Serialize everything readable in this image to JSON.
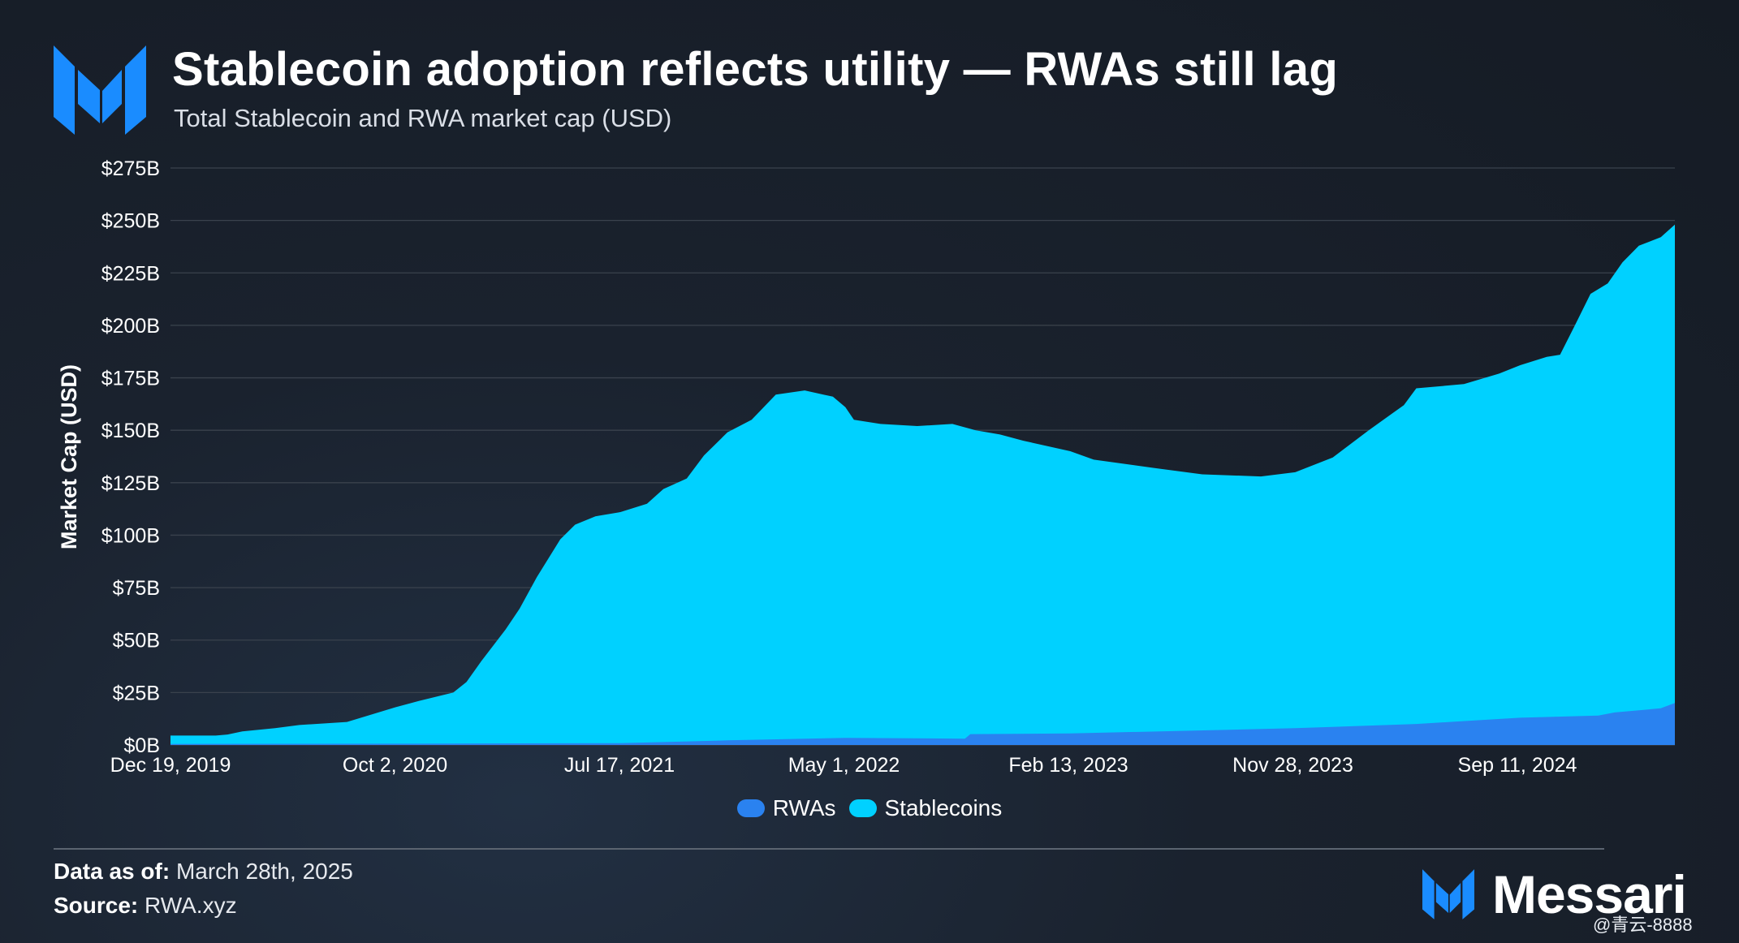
{
  "title": "Stablecoin adoption reflects utility — RWAs still lag",
  "subtitle": "Total Stablecoin and RWA market cap (USD)",
  "footer": {
    "date_label": "Data as of:",
    "date_value": "March 28th, 2025",
    "source_label": "Source:",
    "source_value": "RWA.xyz"
  },
  "brand": {
    "name": "Messari",
    "icon": "messari-logo-icon"
  },
  "watermark": "@青云-8888",
  "colors": {
    "stablecoins": "#00d1ff",
    "rwas": "#2a82f0",
    "grid": "#3a424d",
    "background": "#181f29"
  },
  "chart_data": {
    "type": "area",
    "stacked": false,
    "ylabel": "Market Cap (USD)",
    "xlabel": "",
    "ylim": [
      0,
      275
    ],
    "y_unit": "billions USD",
    "y_ticks": [
      "$0B",
      "$25B",
      "$50B",
      "$75B",
      "$100B",
      "$125B",
      "$150B",
      "$175B",
      "$200B",
      "$225B",
      "$250B",
      "$275B"
    ],
    "x_ticks": [
      "Dec 19, 2019",
      "Oct 2, 2020",
      "Jul 17, 2021",
      "May 1, 2022",
      "Feb 13, 2023",
      "Nov 28, 2023",
      "Sep 11, 2024"
    ],
    "x_range": [
      "2019-12-19",
      "2025-03-28"
    ],
    "grid": true,
    "legend_position": "bottom-center",
    "series": [
      {
        "name": "RWAs",
        "color": "#2a82f0",
        "points": [
          [
            "2019-12-19",
            0.5
          ],
          [
            "2020-10-02",
            0.6
          ],
          [
            "2021-07-17",
            0.9
          ],
          [
            "2021-12-01",
            2.2
          ],
          [
            "2022-05-01",
            3.4
          ],
          [
            "2022-10-01",
            3.0
          ],
          [
            "2022-10-08",
            5.2
          ],
          [
            "2023-02-13",
            5.5
          ],
          [
            "2023-11-28",
            8.0
          ],
          [
            "2024-05-01",
            10.0
          ],
          [
            "2024-09-11",
            13.0
          ],
          [
            "2024-12-20",
            14.0
          ],
          [
            "2025-01-10",
            15.5
          ],
          [
            "2025-03-10",
            17.5
          ],
          [
            "2025-03-28",
            20.0
          ]
        ]
      },
      {
        "name": "Stablecoins",
        "color": "#00d1ff",
        "points": [
          [
            "2019-12-19",
            4.5
          ],
          [
            "2020-02-15",
            4.5
          ],
          [
            "2020-03-01",
            5.0
          ],
          [
            "2020-03-20",
            6.5
          ],
          [
            "2020-05-01",
            8.0
          ],
          [
            "2020-06-01",
            9.5
          ],
          [
            "2020-08-01",
            11.0
          ],
          [
            "2020-10-02",
            18.0
          ],
          [
            "2020-11-01",
            21.0
          ],
          [
            "2020-12-15",
            25.0
          ],
          [
            "2021-01-01",
            30.0
          ],
          [
            "2021-01-20",
            40.0
          ],
          [
            "2021-02-20",
            55.0
          ],
          [
            "2021-03-10",
            65.0
          ],
          [
            "2021-04-01",
            80.0
          ],
          [
            "2021-05-01",
            98.0
          ],
          [
            "2021-05-20",
            105.0
          ],
          [
            "2021-06-15",
            109.0
          ],
          [
            "2021-07-17",
            111.0
          ],
          [
            "2021-08-20",
            115.0
          ],
          [
            "2021-09-10",
            122.0
          ],
          [
            "2021-10-10",
            127.0
          ],
          [
            "2021-11-01",
            138.0
          ],
          [
            "2021-12-01",
            149.0
          ],
          [
            "2022-01-01",
            155.0
          ],
          [
            "2022-02-01",
            167.0
          ],
          [
            "2022-03-10",
            169.0
          ],
          [
            "2022-04-15",
            166.0
          ],
          [
            "2022-05-01",
            161.0
          ],
          [
            "2022-05-12",
            155.0
          ],
          [
            "2022-06-15",
            153.0
          ],
          [
            "2022-08-01",
            152.0
          ],
          [
            "2022-09-15",
            153.0
          ],
          [
            "2022-10-15",
            150.0
          ],
          [
            "2022-11-15",
            148.0
          ],
          [
            "2022-12-15",
            145.0
          ],
          [
            "2023-02-13",
            140.0
          ],
          [
            "2023-03-15",
            136.0
          ],
          [
            "2023-06-01",
            132.0
          ],
          [
            "2023-08-01",
            129.0
          ],
          [
            "2023-10-15",
            128.0
          ],
          [
            "2023-11-28",
            130.0
          ],
          [
            "2024-01-15",
            137.0
          ],
          [
            "2024-03-01",
            150.0
          ],
          [
            "2024-04-15",
            162.0
          ],
          [
            "2024-05-01",
            170.0
          ],
          [
            "2024-07-01",
            172.0
          ],
          [
            "2024-08-15",
            177.0
          ],
          [
            "2024-09-11",
            181.0
          ],
          [
            "2024-10-15",
            185.0
          ],
          [
            "2024-11-01",
            186.0
          ],
          [
            "2024-11-20",
            200.0
          ],
          [
            "2024-12-10",
            215.0
          ],
          [
            "2025-01-01",
            220.0
          ],
          [
            "2025-01-20",
            230.0
          ],
          [
            "2025-02-10",
            238.0
          ],
          [
            "2025-03-10",
            242.0
          ],
          [
            "2025-03-28",
            248.0
          ]
        ]
      }
    ]
  }
}
